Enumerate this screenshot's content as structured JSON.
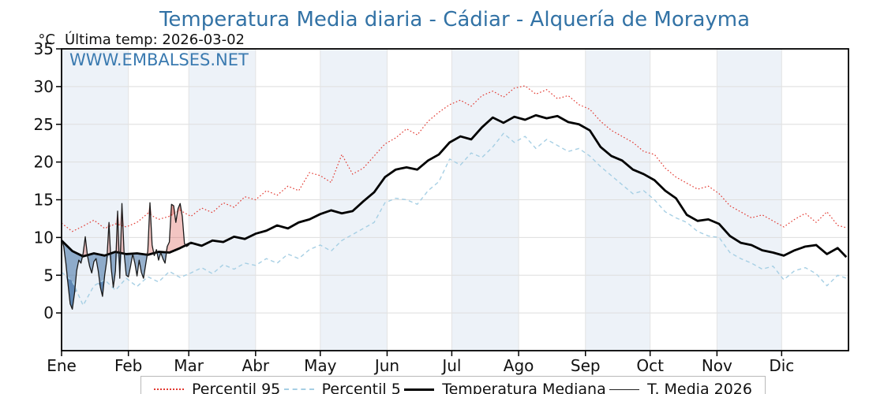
{
  "title": {
    "text": "Temperatura Media diaria - Cádiar - Alquería de Morayma"
  },
  "header": {
    "unit_label": "°C",
    "last_temp_label": "Última temp: 2026-03-02"
  },
  "watermark": "WWW.EMBALSES.NET",
  "legend": {
    "items": [
      {
        "label": "Percentil 95"
      },
      {
        "label": "Percentil 5"
      },
      {
        "label": "Temperatura Mediana"
      },
      {
        "label": "T. Media 2026"
      }
    ]
  },
  "colors": {
    "accent_blue": "#3272a5",
    "band": "#edf2f8",
    "hgrid": "#dedede",
    "vgrid": "#e3e3e3",
    "spine": "#000000",
    "p95": "#e23a32",
    "p5": "#a6cfe4",
    "median": "#000000",
    "t2026": "#1a1a1a",
    "fill_above": "rgba(214,62,52,0.30)",
    "fill_below": "rgba(48,100,155,0.50)"
  },
  "chart_data": {
    "type": "line",
    "title": "Temperatura Media diaria - Cádiar - Alquería de Morayma",
    "ylabel": "°C",
    "ylim": [
      -5,
      35
    ],
    "y_ticks": [
      0,
      5,
      10,
      15,
      20,
      25,
      30,
      35
    ],
    "grid": true,
    "legend_position": "bottom",
    "x_axis": {
      "tick_labels": [
        "Ene",
        "Feb",
        "Mar",
        "Abr",
        "May",
        "Jun",
        "Jul",
        "Ago",
        "Sep",
        "Oct",
        "Nov",
        "Dic"
      ],
      "month_start_days": [
        0,
        31,
        59,
        90,
        120,
        151,
        181,
        212,
        243,
        273,
        304,
        334
      ],
      "days_in_year": 365
    },
    "annotation": "Última temp: 2026-03-02",
    "series": [
      {
        "name": "Percentil 95",
        "style": "dotted",
        "days": [
          0,
          5,
          10,
          15,
          20,
          25,
          30,
          35,
          40,
          45,
          50,
          55,
          60,
          65,
          70,
          75,
          80,
          85,
          90,
          95,
          100,
          105,
          110,
          115,
          120,
          125,
          130,
          135,
          140,
          145,
          150,
          155,
          160,
          165,
          170,
          175,
          180,
          185,
          190,
          195,
          200,
          205,
          210,
          215,
          220,
          225,
          230,
          235,
          240,
          245,
          250,
          255,
          260,
          265,
          270,
          275,
          280,
          285,
          290,
          295,
          300,
          305,
          310,
          315,
          320,
          325,
          330,
          335,
          340,
          345,
          350,
          355,
          360,
          364
        ],
        "values": [
          11.9,
          10.8,
          11.5,
          12.3,
          11.2,
          11.8,
          11.4,
          12.0,
          13.2,
          12.4,
          12.8,
          13.6,
          12.8,
          13.9,
          13.3,
          14.6,
          14.0,
          15.4,
          15.0,
          16.2,
          15.6,
          16.8,
          16.2,
          18.6,
          18.2,
          17.3,
          21.0,
          18.4,
          19.2,
          20.8,
          22.4,
          23.2,
          24.4,
          23.6,
          25.4,
          26.6,
          27.6,
          28.2,
          27.4,
          28.8,
          29.4,
          28.6,
          29.8,
          30.1,
          29.0,
          29.6,
          28.4,
          28.8,
          27.6,
          27.0,
          25.4,
          24.2,
          23.4,
          22.6,
          21.4,
          21.0,
          19.2,
          18.0,
          17.2,
          16.4,
          16.8,
          15.8,
          14.2,
          13.4,
          12.6,
          13.0,
          12.2,
          11.4,
          12.4,
          13.2,
          12.0,
          13.4,
          11.6,
          11.3
        ]
      },
      {
        "name": "Percentil 5",
        "style": "dashed",
        "days": [
          0,
          5,
          10,
          15,
          20,
          25,
          30,
          35,
          40,
          45,
          50,
          55,
          60,
          65,
          70,
          75,
          80,
          85,
          90,
          95,
          100,
          105,
          110,
          115,
          120,
          125,
          130,
          135,
          140,
          145,
          150,
          155,
          160,
          165,
          170,
          175,
          180,
          185,
          190,
          195,
          200,
          205,
          210,
          215,
          220,
          225,
          230,
          235,
          240,
          245,
          250,
          255,
          260,
          265,
          270,
          275,
          280,
          285,
          290,
          295,
          300,
          305,
          310,
          315,
          320,
          325,
          330,
          335,
          340,
          345,
          350,
          355,
          360,
          364
        ],
        "values": [
          5.4,
          4.2,
          1.0,
          3.6,
          4.4,
          3.0,
          4.6,
          3.5,
          4.8,
          4.1,
          5.5,
          4.7,
          5.3,
          6.0,
          5.2,
          6.4,
          5.8,
          6.6,
          6.3,
          7.2,
          6.6,
          7.8,
          7.2,
          8.4,
          9.0,
          8.2,
          9.6,
          10.4,
          11.2,
          12.0,
          14.6,
          15.2,
          15.0,
          14.4,
          16.2,
          17.4,
          20.4,
          19.6,
          21.2,
          20.6,
          22.0,
          23.8,
          22.6,
          23.4,
          21.8,
          23.0,
          22.2,
          21.4,
          21.8,
          20.8,
          19.4,
          18.2,
          17.0,
          15.8,
          16.2,
          15.0,
          13.4,
          12.6,
          12.0,
          10.8,
          10.2,
          10.0,
          8.0,
          7.2,
          6.6,
          5.8,
          6.2,
          4.4,
          5.6,
          6.0,
          5.2,
          3.6,
          5.0,
          4.6
        ]
      },
      {
        "name": "Temperatura Mediana",
        "style": "solid-thick",
        "days": [
          0,
          5,
          10,
          15,
          20,
          25,
          30,
          35,
          40,
          45,
          50,
          55,
          60,
          65,
          70,
          75,
          80,
          85,
          90,
          95,
          100,
          105,
          110,
          115,
          120,
          125,
          130,
          135,
          140,
          145,
          150,
          155,
          160,
          165,
          170,
          175,
          180,
          185,
          190,
          195,
          200,
          205,
          210,
          215,
          220,
          225,
          230,
          235,
          240,
          245,
          250,
          255,
          260,
          265,
          270,
          275,
          280,
          285,
          290,
          295,
          300,
          305,
          310,
          315,
          320,
          325,
          330,
          335,
          340,
          345,
          350,
          355,
          360,
          364
        ],
        "values": [
          9.6,
          8.2,
          7.5,
          7.9,
          7.6,
          8.1,
          7.8,
          7.9,
          7.7,
          8.1,
          8.0,
          8.6,
          9.3,
          8.9,
          9.6,
          9.4,
          10.1,
          9.8,
          10.5,
          10.9,
          11.6,
          11.2,
          12.0,
          12.4,
          13.1,
          13.6,
          13.2,
          13.5,
          14.8,
          16.0,
          18.0,
          19.0,
          19.3,
          19.0,
          20.2,
          21.0,
          22.6,
          23.4,
          23.0,
          24.6,
          25.9,
          25.2,
          26.0,
          25.6,
          26.2,
          25.8,
          26.1,
          25.3,
          25.0,
          24.2,
          22.0,
          20.8,
          20.2,
          19.0,
          18.4,
          17.6,
          16.2,
          15.2,
          13.0,
          12.2,
          12.4,
          11.8,
          10.2,
          9.3,
          9.0,
          8.3,
          8.0,
          7.6,
          8.3,
          8.8,
          9.0,
          7.8,
          8.6,
          7.4
        ]
      },
      {
        "name": "T. Media 2026",
        "style": "solid-thin",
        "start_day": 0,
        "daily_values": [
          9.8,
          8.8,
          6.6,
          3.8,
          1.2,
          0.5,
          2.6,
          5.6,
          7.0,
          6.6,
          7.9,
          10.1,
          7.6,
          6.2,
          5.3,
          6.8,
          7.2,
          5.6,
          3.4,
          2.2,
          5.0,
          7.0,
          12.0,
          6.0,
          3.4,
          5.6,
          13.5,
          4.6,
          14.5,
          8.0,
          5.0,
          4.8,
          6.2,
          7.8,
          6.6,
          4.9,
          7.0,
          5.4,
          4.6,
          6.4,
          8.2,
          14.6,
          9.0,
          7.6,
          8.4,
          7.0,
          8.0,
          7.2,
          6.6,
          8.8,
          9.4,
          14.4,
          14.2,
          12.0,
          13.8,
          14.5,
          12.8,
          9.2,
          8.8,
          9.0,
          9.4
        ]
      }
    ]
  }
}
